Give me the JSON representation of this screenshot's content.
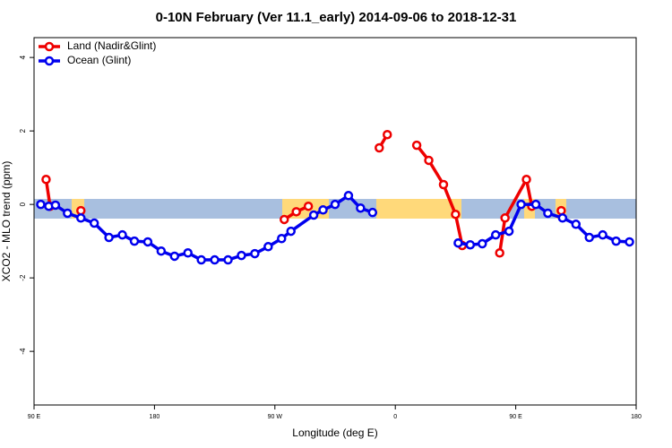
{
  "chart_data": {
    "type": "line",
    "title": "0-10N February (Ver 11.1_early)   2014-09-06 to 2018-12-31",
    "xlabel": "Longitude (deg E)",
    "ylabel": "XCO2 - MLO trend (ppm)",
    "xlim": [
      90,
      540
    ],
    "ylim": [
      -5.46,
      4.54
    ],
    "xticks": [
      {
        "value": 90,
        "label": "90 E"
      },
      180,
      {
        "value": 270,
        "label": "90 W"
      },
      {
        "value": 360,
        "label": "0"
      },
      {
        "value": 450,
        "label": "90 E"
      },
      {
        "value": 540,
        "label": "180"
      }
    ],
    "yticks": [
      -4,
      -2,
      0,
      2,
      4
    ],
    "legend": "top-left",
    "series": [
      {
        "name": "Land (Nadir&Glint)",
        "color": "#ee0000",
        "x": [
          99,
          102,
          114,
          125,
          200,
          277,
          286,
          295,
          320,
          348,
          354,
          365,
          376,
          385,
          396,
          405,
          410,
          424,
          438,
          442,
          458,
          462,
          473,
          484
        ],
        "values": [
          0.68,
          -0.05,
          null,
          -0.17,
          null,
          -0.41,
          -0.2,
          -0.05,
          null,
          1.54,
          1.9,
          null,
          1.61,
          1.2,
          0.54,
          -0.27,
          -1.12,
          null,
          -1.32,
          -0.37,
          0.68,
          -0.05,
          null,
          -0.17
        ]
      },
      {
        "name": "Ocean (Glint)",
        "color": "#0000ee",
        "x": [
          95,
          101,
          106,
          115,
          125,
          135,
          146,
          156,
          165,
          175,
          185,
          195,
          205,
          215,
          225,
          235,
          245,
          255,
          265,
          275,
          282,
          299,
          306,
          315,
          325,
          334,
          343,
          375,
          407,
          416,
          425,
          435,
          445,
          454,
          465,
          474,
          485,
          495,
          505,
          515,
          525,
          535
        ],
        "values": [
          0,
          -0.05,
          -0.02,
          -0.24,
          -0.37,
          -0.51,
          -0.9,
          -0.83,
          -1.0,
          -1.02,
          -1.27,
          -1.41,
          -1.32,
          -1.51,
          -1.51,
          -1.51,
          -1.39,
          -1.34,
          -1.15,
          -0.93,
          -0.73,
          -0.29,
          -0.15,
          0,
          0.24,
          -0.1,
          -0.22,
          null,
          -1.05,
          -1.1,
          -1.07,
          -0.83,
          -0.73,
          0,
          0,
          -0.24,
          -0.37,
          -0.54,
          -0.9,
          -0.83,
          -1.0,
          -1.02
        ]
      }
    ]
  }
}
